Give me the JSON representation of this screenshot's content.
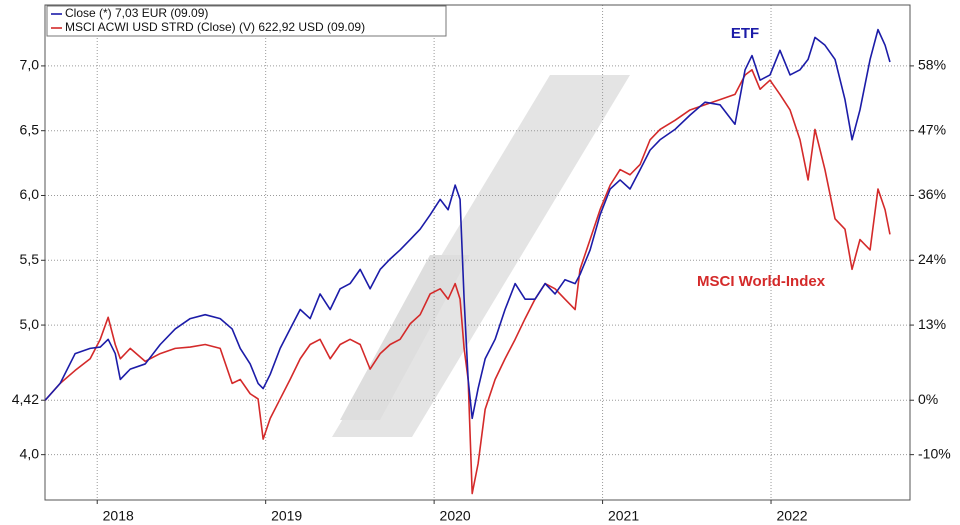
{
  "chart_data": {
    "type": "line",
    "legend": [
      {
        "text": "Close (*) 7,03 EUR (09.09)",
        "series": 0
      },
      {
        "text": "MSCI ACWI USD STRD (Close) (V) 622,92 USD (09.09)",
        "series": 1
      }
    ],
    "annotations": [
      "ETF",
      "MSCI World-Index"
    ],
    "x": [
      2017.691,
      2017.78,
      2017.869,
      2017.958,
      2018.018,
      2018.065,
      2018.107,
      2018.137,
      2018.196,
      2018.285,
      2018.374,
      2018.463,
      2018.552,
      2018.641,
      2018.73,
      2018.801,
      2018.849,
      2018.908,
      2018.955,
      2018.985,
      2019.027,
      2019.086,
      2019.145,
      2019.205,
      2019.264,
      2019.323,
      2019.383,
      2019.442,
      2019.501,
      2019.561,
      2019.62,
      2019.68,
      2019.739,
      2019.798,
      2019.858,
      2019.917,
      2019.976,
      2020.036,
      2020.083,
      2020.125,
      2020.154,
      2020.178,
      2020.202,
      2020.226,
      2020.261,
      2020.303,
      2020.362,
      2020.421,
      2020.481,
      2020.54,
      2020.599,
      2020.659,
      2020.718,
      2020.777,
      2020.837,
      2020.866,
      2020.926,
      2020.985,
      2021.045,
      2021.104,
      2021.163,
      2021.223,
      2021.282,
      2021.341,
      2021.43,
      2021.519,
      2021.608,
      2021.697,
      2021.786,
      2021.846,
      2021.887,
      2021.935,
      2021.994,
      2022.053,
      2022.113,
      2022.172,
      2022.22,
      2022.261,
      2022.32,
      2022.38,
      2022.439,
      2022.481,
      2022.528,
      2022.588,
      2022.635,
      2022.677,
      2022.706
    ],
    "series": [
      {
        "name": "ETF",
        "color": "#1c1ca8",
        "values": [
          4.42,
          4.55,
          4.78,
          4.82,
          4.83,
          4.89,
          4.78,
          4.58,
          4.66,
          4.7,
          4.85,
          4.97,
          5.05,
          5.08,
          5.05,
          4.97,
          4.82,
          4.7,
          4.55,
          4.51,
          4.62,
          4.82,
          4.97,
          5.12,
          5.05,
          5.24,
          5.12,
          5.28,
          5.32,
          5.43,
          5.28,
          5.43,
          5.51,
          5.58,
          5.66,
          5.74,
          5.85,
          5.97,
          5.89,
          6.08,
          5.97,
          5.2,
          4.58,
          4.28,
          4.51,
          4.74,
          4.89,
          5.12,
          5.32,
          5.2,
          5.2,
          5.32,
          5.24,
          5.35,
          5.32,
          5.39,
          5.58,
          5.85,
          6.05,
          6.12,
          6.05,
          6.2,
          6.35,
          6.43,
          6.51,
          6.62,
          6.72,
          6.7,
          6.55,
          6.97,
          7.08,
          6.89,
          6.93,
          7.12,
          6.93,
          6.97,
          7.05,
          7.22,
          7.16,
          7.05,
          6.74,
          6.43,
          6.66,
          7.05,
          7.28,
          7.16,
          7.03
        ]
      },
      {
        "name": "MSCI World-Index",
        "color": "#d42a2a",
        "values": [
          4.42,
          4.55,
          4.65,
          4.74,
          4.89,
          5.06,
          4.85,
          4.74,
          4.82,
          4.72,
          4.78,
          4.82,
          4.83,
          4.85,
          4.82,
          4.55,
          4.58,
          4.47,
          4.43,
          4.12,
          4.28,
          4.43,
          4.58,
          4.74,
          4.85,
          4.89,
          4.74,
          4.85,
          4.89,
          4.85,
          4.66,
          4.78,
          4.85,
          4.89,
          5.01,
          5.08,
          5.24,
          5.28,
          5.2,
          5.32,
          5.2,
          4.82,
          4.58,
          3.7,
          3.93,
          4.35,
          4.58,
          4.74,
          4.89,
          5.05,
          5.2,
          5.32,
          5.28,
          5.2,
          5.12,
          5.43,
          5.66,
          5.89,
          6.08,
          6.2,
          6.16,
          6.24,
          6.43,
          6.51,
          6.58,
          6.66,
          6.7,
          6.74,
          6.78,
          6.93,
          6.97,
          6.82,
          6.89,
          6.78,
          6.66,
          6.43,
          6.12,
          6.51,
          6.2,
          5.82,
          5.74,
          5.43,
          5.66,
          5.58,
          6.05,
          5.89,
          5.7
        ]
      }
    ],
    "xlim": [
      2017.69,
      2022.825
    ],
    "xticks": [
      2018,
      2019,
      2020,
      2021,
      2022
    ],
    "ylim": [
      3.65,
      7.47
    ],
    "yticks": [
      {
        "value": 4,
        "label": "4,0"
      },
      {
        "value": 4.42,
        "label": "4,42"
      },
      {
        "value": 5,
        "label": "5,0"
      },
      {
        "value": 5.5,
        "label": "5,5"
      },
      {
        "value": 6,
        "label": "6,0"
      },
      {
        "value": 6.5,
        "label": "6,5"
      },
      {
        "value": 7,
        "label": "7,0"
      }
    ],
    "y2lim": [
      -17.42,
      69.0
    ],
    "y2ticks": [
      {
        "value": -9.5,
        "label": "-10%"
      },
      {
        "value": 0,
        "label": "0%"
      },
      {
        "value": 13.12,
        "label": "13%"
      },
      {
        "value": 24.43,
        "label": "24%"
      },
      {
        "value": 35.75,
        "label": "36%"
      },
      {
        "value": 47.06,
        "label": "47%"
      },
      {
        "value": 58.37,
        "label": "58%"
      }
    ],
    "grid": true
  }
}
